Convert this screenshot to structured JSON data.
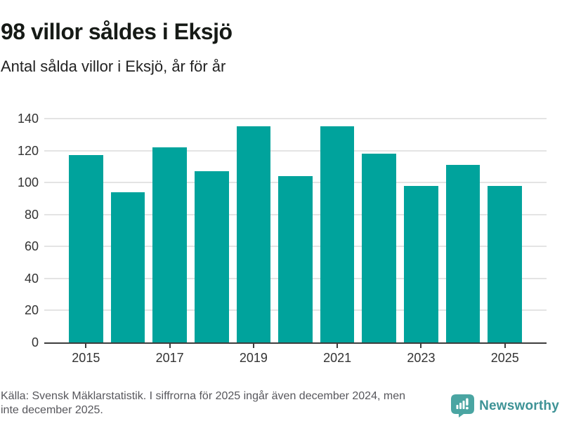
{
  "header": {
    "title": "98 villor såldes i Eksjö",
    "subtitle": "Antal sålda villor i Eksjö, år för år"
  },
  "chart_data": {
    "type": "bar",
    "categories": [
      "2015",
      "2016",
      "2017",
      "2018",
      "2019",
      "2020",
      "2021",
      "2022",
      "2023",
      "2024",
      "2025"
    ],
    "values": [
      117,
      94,
      122,
      107,
      135,
      104,
      135,
      118,
      98,
      111,
      98
    ],
    "title": "98 villor såldes i Eksjö",
    "subtitle": "Antal sålda villor i Eksjö, år för år",
    "xlabel": "",
    "ylabel": "",
    "ylim": [
      0,
      140
    ],
    "yticks": [
      0,
      20,
      40,
      60,
      80,
      100,
      120,
      140
    ],
    "xtick_labels": [
      "2015",
      "2017",
      "2019",
      "2021",
      "2023",
      "2025"
    ],
    "grid": "horizontal",
    "legend": "none",
    "bar_color": "#00a39c"
  },
  "footer": {
    "source_line1": "Källa: Svensk Mäklarstatistik. I siffrorna för 2025 ingår även december 2024, men",
    "source_line2": "inte december 2025.",
    "brand": "Newsworthy"
  },
  "colors": {
    "bar": "#00a39c",
    "axis": "#3d3d3d",
    "grid": "#e4e4e4",
    "brand_text": "#3e9396",
    "brand_icon": "#4aa5a2"
  }
}
